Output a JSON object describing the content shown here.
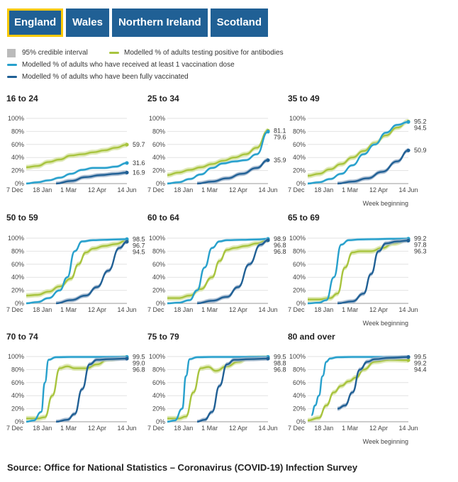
{
  "tabs": [
    {
      "label": "England",
      "active": true
    },
    {
      "label": "Wales",
      "active": false
    },
    {
      "label": "Northern Ireland",
      "active": false
    },
    {
      "label": "Scotland",
      "active": false
    }
  ],
  "legend": {
    "interval": "95% credible interval",
    "antibodies": "Modelled % of adults testing positive for antibodies",
    "one_dose": "Modelled % of adults who have received at least 1 vaccination dose",
    "fully": "Modelled % of adults who have been fully vaccinated"
  },
  "colors": {
    "antibodies": "#a8c43e",
    "antibodies_band": "#d7e4a4",
    "one_dose": "#27a0cc",
    "one_dose_band": "#b3dcec",
    "fully": "#206095",
    "fully_band": "#9ab0c9",
    "interval": "#bbbbbb"
  },
  "source": "Source: Office for National Statistics – Coronavirus (COVID-19) Infection Survey",
  "chart_data": {
    "type": "line",
    "xlabel": "Week beginning",
    "x_ticks": [
      "7 Dec",
      "18 Jan",
      "1 Mar",
      "12 Apr",
      "14 Jun"
    ],
    "x_tick_weeks": [
      0,
      6,
      12,
      18,
      27
    ],
    "y_ticks": [
      "0%",
      "20%",
      "40%",
      "60%",
      "80%",
      "100%"
    ],
    "ylim": [
      0,
      100
    ],
    "panels": [
      {
        "title": "16 to 24",
        "antibodies": {
          "x": [
            0,
            3,
            6,
            9,
            12,
            15,
            18,
            21,
            24,
            27
          ],
          "y": [
            25,
            27,
            33,
            37,
            43,
            45,
            48,
            51,
            55,
            59.7
          ]
        },
        "one_dose": {
          "x": [
            0,
            3,
            6,
            9,
            12,
            15,
            18,
            21,
            24,
            27
          ],
          "y": [
            0,
            2,
            5,
            9,
            15,
            21,
            24,
            24,
            26,
            31.6
          ]
        },
        "fully": {
          "x": [
            8,
            12,
            16,
            20,
            24,
            27
          ],
          "y": [
            0,
            4,
            10,
            13,
            15,
            16.9
          ]
        },
        "labels": [
          "59.7",
          "31.6",
          "16.9"
        ]
      },
      {
        "title": "25 to 34",
        "antibodies": {
          "x": [
            0,
            3,
            6,
            9,
            12,
            15,
            18,
            21,
            24,
            27
          ],
          "y": [
            13,
            17,
            21,
            25,
            30,
            35,
            40,
            45,
            55,
            81.1
          ]
        },
        "one_dose": {
          "x": [
            0,
            3,
            6,
            9,
            12,
            15,
            18,
            21,
            24,
            27
          ],
          "y": [
            0,
            2,
            7,
            14,
            24,
            31,
            34,
            36,
            45,
            79.6
          ]
        },
        "fully": {
          "x": [
            8,
            12,
            16,
            20,
            24,
            27
          ],
          "y": [
            0,
            3,
            8,
            15,
            24,
            35.9
          ]
        },
        "labels": [
          "81.1",
          "79.6",
          "35.9"
        ]
      },
      {
        "title": "35 to 49",
        "antibodies": {
          "x": [
            0,
            3,
            6,
            9,
            12,
            15,
            18,
            21,
            24,
            27
          ],
          "y": [
            12,
            15,
            22,
            30,
            40,
            50,
            62,
            74,
            86,
            95.2
          ]
        },
        "one_dose": {
          "x": [
            0,
            3,
            6,
            9,
            12,
            15,
            18,
            21,
            24,
            27
          ],
          "y": [
            0,
            2,
            7,
            15,
            28,
            45,
            60,
            78,
            90,
            94.5
          ]
        },
        "fully": {
          "x": [
            8,
            12,
            16,
            20,
            24,
            27
          ],
          "y": [
            0,
            3,
            8,
            18,
            34,
            50.9
          ]
        },
        "labels": [
          "95.2",
          "94.5",
          "50.9"
        ]
      },
      {
        "title": "50 to 59",
        "antibodies": {
          "x": [
            0,
            3,
            6,
            9,
            12,
            14,
            16,
            18,
            21,
            24,
            27
          ],
          "y": [
            12,
            13,
            18,
            26,
            38,
            60,
            78,
            84,
            88,
            91,
            96.7
          ]
        },
        "one_dose": {
          "x": [
            0,
            3,
            6,
            9,
            11,
            13,
            15,
            18,
            21,
            24,
            27
          ],
          "y": [
            0,
            2,
            8,
            20,
            40,
            80,
            95,
            97,
            97.5,
            98,
            98.5
          ]
        },
        "fully": {
          "x": [
            8,
            12,
            16,
            19,
            22,
            25,
            27
          ],
          "y": [
            0,
            5,
            12,
            25,
            50,
            85,
            94.5
          ]
        },
        "labels": [
          "98.5",
          "96.7",
          "94.5"
        ]
      },
      {
        "title": "60 to 64",
        "antibodies": {
          "x": [
            0,
            3,
            6,
            9,
            12,
            14,
            16,
            18,
            21,
            24,
            27
          ],
          "y": [
            8,
            8,
            12,
            22,
            40,
            65,
            82,
            85,
            88,
            92,
            96.8
          ]
        },
        "one_dose": {
          "x": [
            0,
            3,
            6,
            8,
            10,
            12,
            14,
            16,
            20,
            24,
            27
          ],
          "y": [
            0,
            1,
            5,
            20,
            55,
            85,
            95,
            97,
            97.5,
            98,
            98.9
          ]
        },
        "fully": {
          "x": [
            8,
            12,
            16,
            19,
            22,
            25,
            27
          ],
          "y": [
            0,
            4,
            10,
            25,
            60,
            90,
            96.8
          ]
        },
        "labels": [
          "98.9",
          "96.8",
          "96.8"
        ]
      },
      {
        "title": "65 to 69",
        "antibodies": {
          "x": [
            0,
            3,
            6,
            8,
            10,
            12,
            14,
            17,
            20,
            23,
            27
          ],
          "y": [
            6,
            6,
            8,
            15,
            55,
            78,
            80,
            80,
            85,
            92,
            97.8
          ]
        },
        "one_dose": {
          "x": [
            0,
            3,
            5,
            7,
            9,
            11,
            14,
            18,
            22,
            27
          ],
          "y": [
            0,
            1,
            5,
            40,
            90,
            97,
            98,
            98.5,
            99,
            99.2
          ]
        },
        "fully": {
          "x": [
            8,
            12,
            15,
            17,
            19,
            21,
            24,
            27
          ],
          "y": [
            0,
            3,
            15,
            45,
            80,
            92,
            95,
            96.3
          ]
        },
        "labels": [
          "99.2",
          "97.8",
          "96.3"
        ]
      },
      {
        "title": "70 to 74",
        "antibodies": {
          "x": [
            0,
            3,
            5,
            7,
            9,
            11,
            13,
            16,
            19,
            22,
            27
          ],
          "y": [
            5,
            5,
            7,
            40,
            82,
            85,
            82,
            82,
            88,
            96,
            99.0
          ]
        },
        "one_dose": {
          "x": [
            0,
            2,
            4,
            5,
            6,
            8,
            12,
            18,
            27
          ],
          "y": [
            0,
            2,
            15,
            60,
            95,
            99,
            99.3,
            99.4,
            99.5
          ]
        },
        "fully": {
          "x": [
            8,
            11,
            13,
            15,
            17,
            19,
            22,
            27
          ],
          "y": [
            0,
            3,
            12,
            50,
            88,
            95,
            96,
            96.8
          ]
        },
        "labels": [
          "99.5",
          "99.0",
          "96.8"
        ]
      },
      {
        "title": "75 to 79",
        "antibodies": {
          "x": [
            0,
            3,
            5,
            7,
            9,
            11,
            13,
            16,
            19,
            22,
            27
          ],
          "y": [
            5,
            5,
            8,
            45,
            82,
            84,
            78,
            85,
            92,
            98,
            98.8
          ]
        },
        "one_dose": {
          "x": [
            0,
            2,
            4,
            5,
            6,
            8,
            12,
            18,
            27
          ],
          "y": [
            0,
            2,
            20,
            70,
            96,
            99,
            99.3,
            99.4,
            99.5
          ]
        },
        "fully": {
          "x": [
            8,
            10,
            12,
            14,
            16,
            18,
            22,
            27
          ],
          "y": [
            0,
            3,
            15,
            55,
            88,
            95,
            96,
            96.8
          ]
        },
        "labels": [
          "99.5",
          "98.8",
          "96.8"
        ]
      },
      {
        "title": "80 and over",
        "antibodies": {
          "x": [
            0,
            3,
            5,
            7,
            9,
            11,
            13,
            15,
            18,
            22,
            27
          ],
          "y": [
            2,
            6,
            25,
            45,
            55,
            62,
            68,
            80,
            92,
            95,
            94.4
          ]
        },
        "one_dose": {
          "x": [
            1,
            2,
            3,
            4,
            5,
            6,
            8,
            12,
            18,
            27
          ],
          "y": [
            10,
            25,
            40,
            70,
            92,
            97,
            99,
            99.3,
            99.4,
            99.5
          ]
        },
        "fully": {
          "x": [
            8,
            10,
            12,
            14,
            16,
            18,
            22,
            27
          ],
          "y": [
            20,
            25,
            45,
            80,
            92,
            96,
            98,
            99.2
          ]
        },
        "labels": [
          "99.5",
          "99.2",
          "94.4"
        ]
      }
    ]
  }
}
